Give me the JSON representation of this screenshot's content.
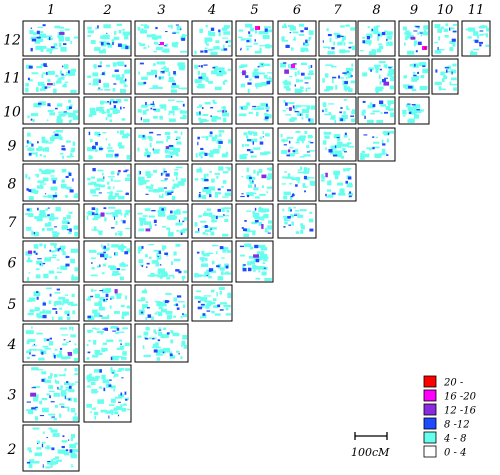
{
  "grid": {
    "column_labels": [
      "1",
      "2",
      "3",
      "4",
      "5",
      "6",
      "7",
      "8",
      "9",
      "10",
      "11"
    ],
    "row_labels": [
      "12",
      "11",
      "10",
      "9",
      "8",
      "7",
      "6",
      "5",
      "4",
      "3",
      "2"
    ]
  },
  "legend": {
    "title": "",
    "entries": [
      {
        "label": "20 -",
        "color": "#ff0000"
      },
      {
        "label": "16 -20",
        "color": "#ff00ff"
      },
      {
        "label": "12 -16",
        "color": "#8a2be2"
      },
      {
        "label": "8 -12",
        "color": "#1e4bff"
      },
      {
        "label": "4 - 8",
        "color": "#66ffee"
      },
      {
        "label": "0 - 4",
        "color": "#ffffff"
      }
    ]
  },
  "scale_bar": {
    "label": "100cM"
  }
}
